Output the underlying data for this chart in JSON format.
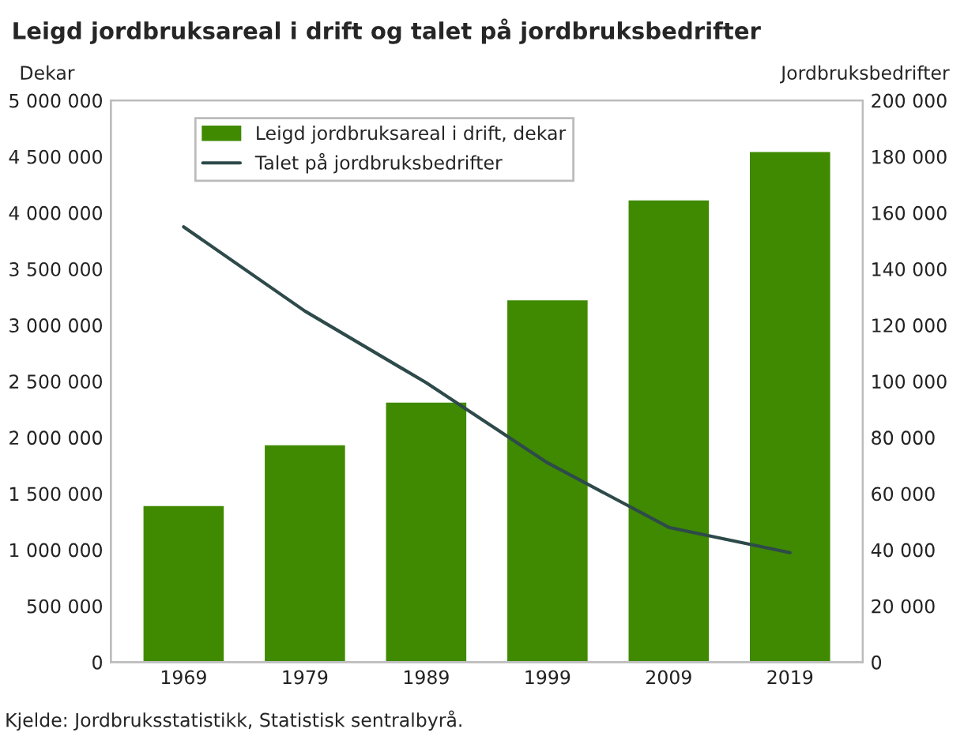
{
  "chart_data": {
    "type": "bar",
    "title": "Leigd jordbruksareal i drift og talet på jordbruksbedrifter",
    "ylabel": "Dekar",
    "y2label": "Jordbruksbedrifter",
    "categories": [
      "1969",
      "1979",
      "1989",
      "1999",
      "2009",
      "2019"
    ],
    "series": [
      {
        "name": "Leigd jordbruksareal i drift, dekar",
        "color": "#3f8a00",
        "values": [
          1400000,
          1940000,
          2320000,
          3230000,
          4120000,
          4550000
        ]
      },
      {
        "name": "Talet på jordbruksbedrifter",
        "type": "line",
        "axis": "y2",
        "color": "#2e4a4a",
        "values": [
          155000,
          125000,
          99500,
          71000,
          48000,
          39000
        ]
      }
    ],
    "ylim": [
      0,
      5000000
    ],
    "yticks": [
      0,
      {
        "value": 500000,
        "label": "500 000"
      },
      {
        "value": 1000000,
        "label": "1 000 000"
      },
      {
        "value": 1500000,
        "label": "1 500 000"
      },
      {
        "value": 2000000,
        "label": "2 000 000"
      },
      {
        "value": 2500000,
        "label": "2 500 000"
      },
      {
        "value": 3000000,
        "label": "3 000 000"
      },
      {
        "value": 3500000,
        "label": "3 500 000"
      },
      {
        "value": 4000000,
        "label": "4 000 000"
      },
      {
        "value": 4500000,
        "label": "4 500 000"
      },
      {
        "value": 5000000,
        "label": "5 000 000"
      }
    ],
    "y2lim": [
      0,
      200000
    ],
    "y2ticks": [
      0,
      {
        "value": 20000,
        "label": "20 000"
      },
      {
        "value": 40000,
        "label": "40 000"
      },
      {
        "value": 60000,
        "label": "60 000"
      },
      {
        "value": 80000,
        "label": "80 000"
      },
      {
        "value": 100000,
        "label": "100 000"
      },
      {
        "value": 120000,
        "label": "120 000"
      },
      {
        "value": 140000,
        "label": "140 000"
      },
      {
        "value": 160000,
        "label": "160 000"
      },
      {
        "value": 180000,
        "label": "180 000"
      },
      {
        "value": 200000,
        "label": "200 000"
      }
    ],
    "legend": "top left",
    "grid": false,
    "marker": "none",
    "line_style": "solid",
    "annotations": [
      "Kjelde: Jordbruksstatistikk, Statistisk sentralbyrå."
    ]
  }
}
